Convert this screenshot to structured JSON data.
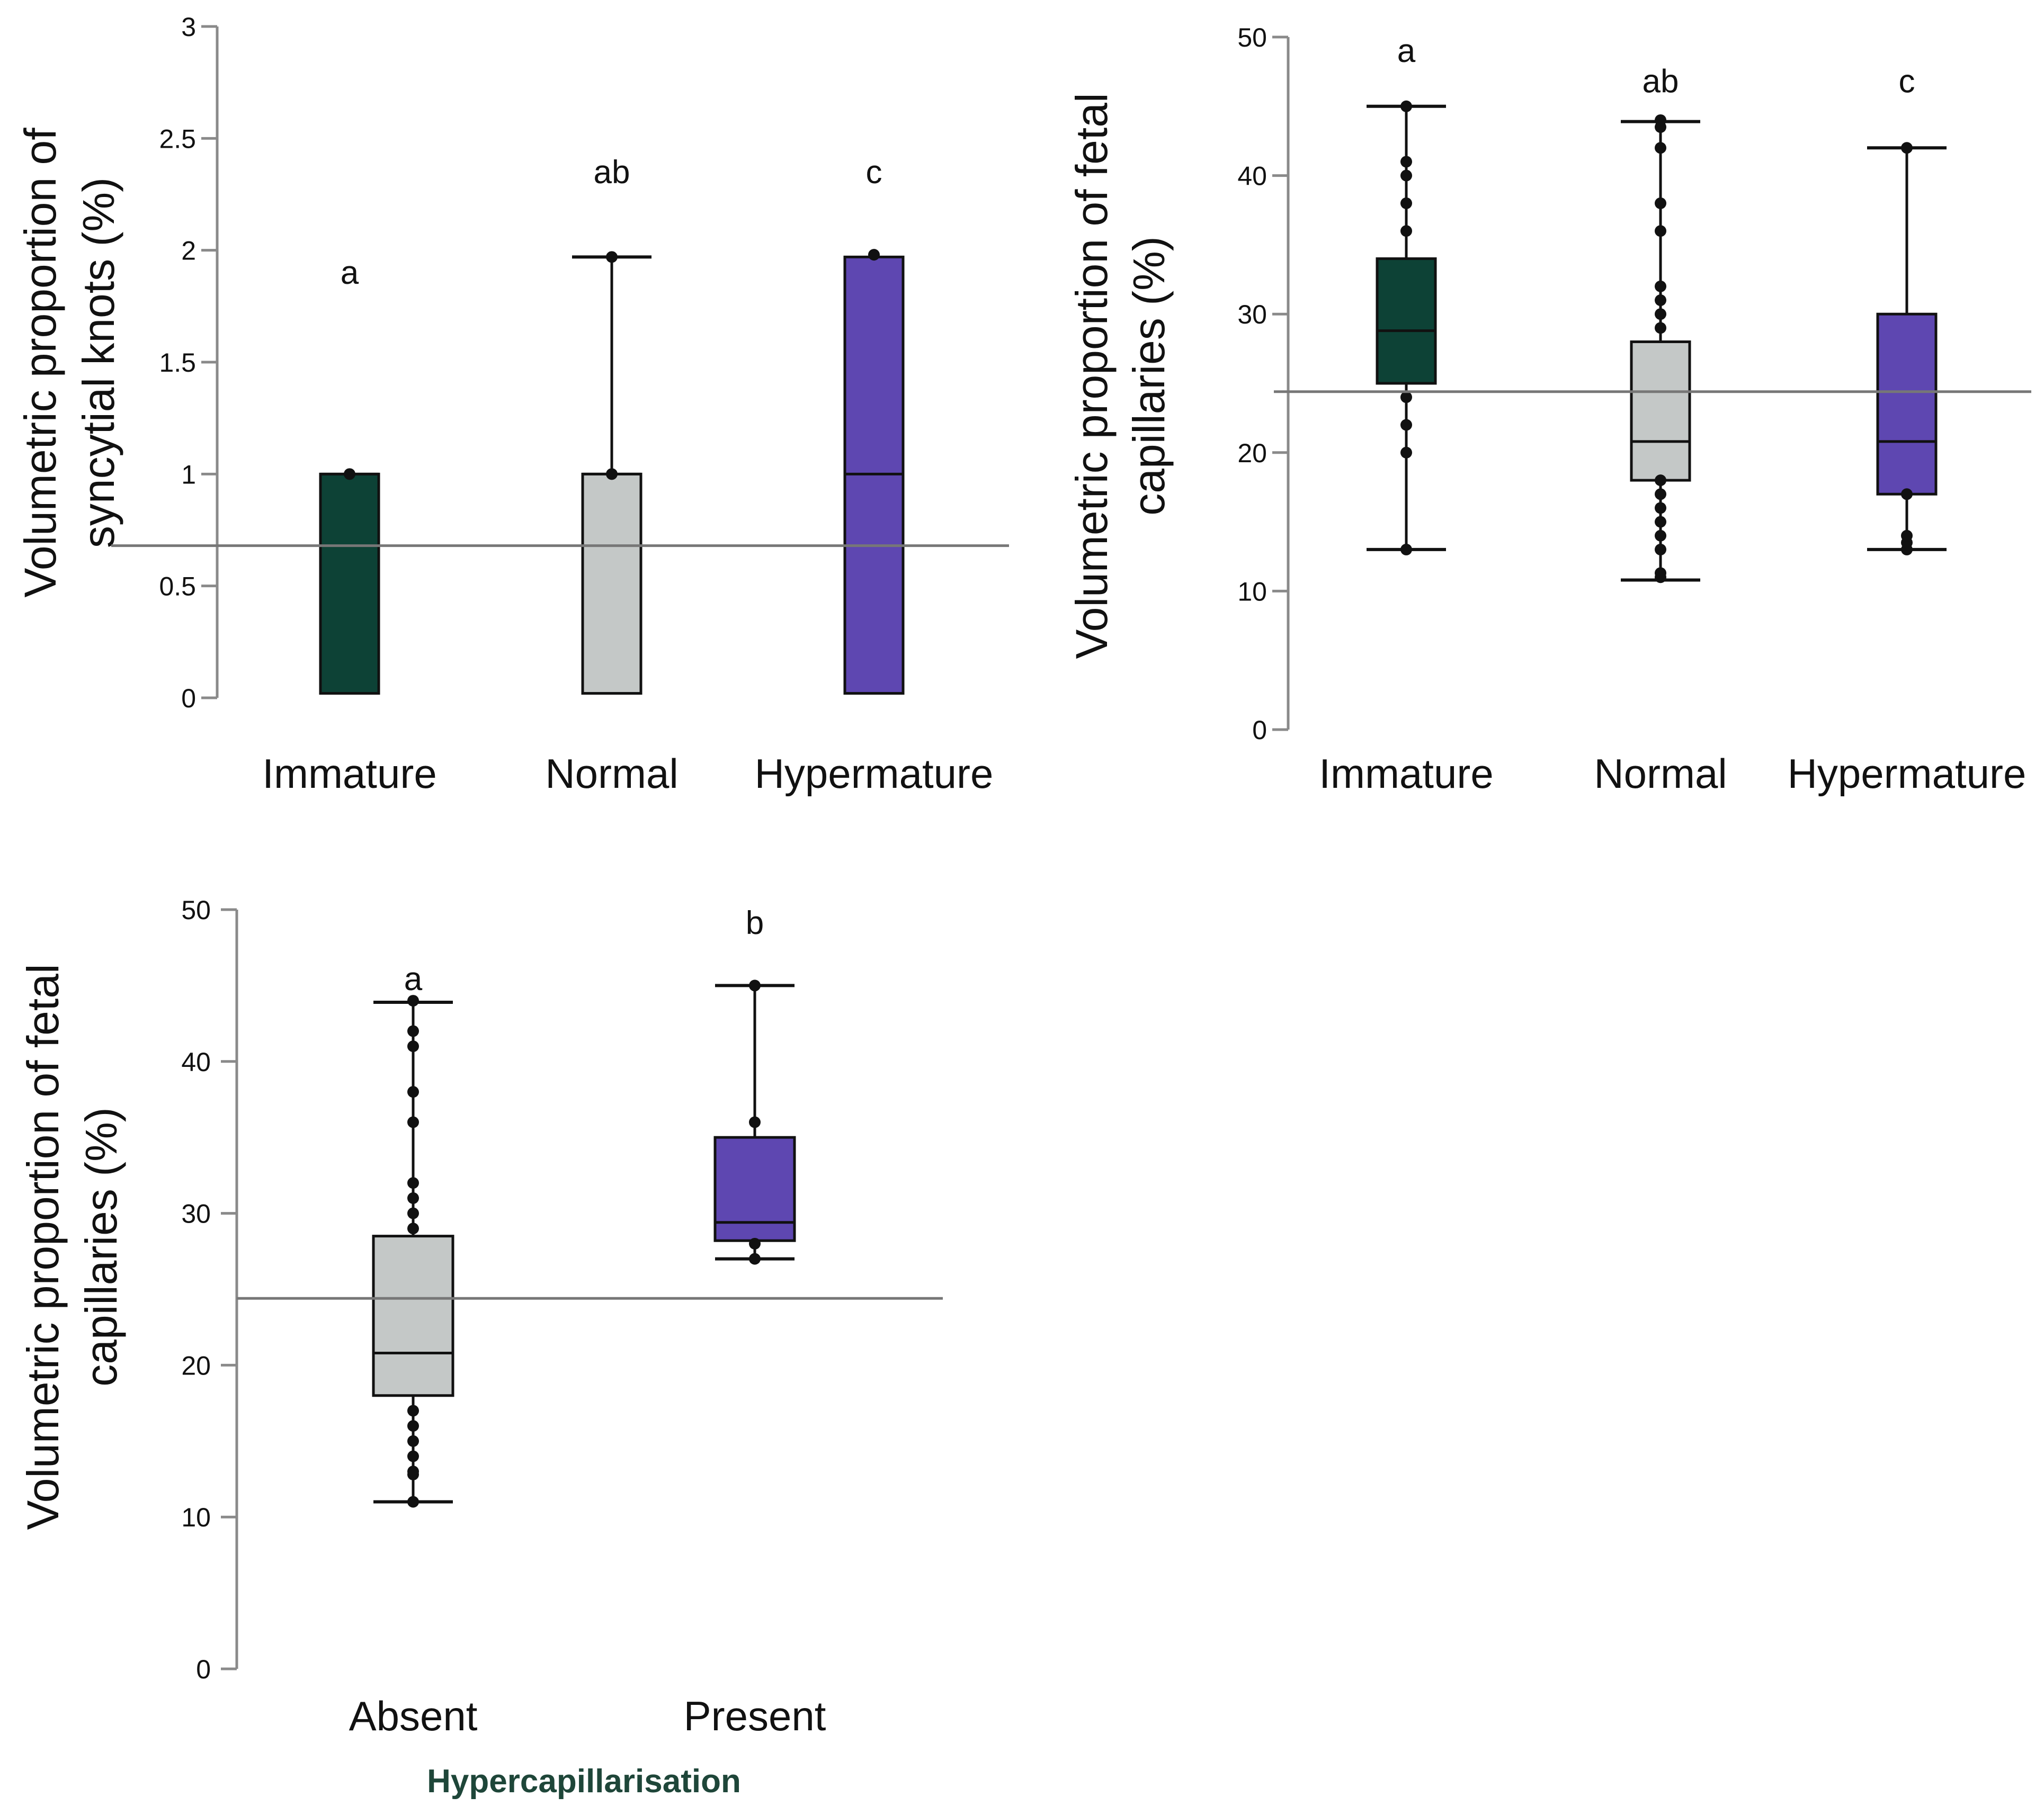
{
  "colors": {
    "immature": "#0d4236",
    "normal": "#c4c8c7",
    "hypermature": "#5e47b1",
    "axis": "#8a8a8a",
    "refline": "#777777",
    "ink": "#111111",
    "xtitle": "#1e4639"
  },
  "chart_data": [
    {
      "id": "knots",
      "type": "box",
      "title": "",
      "ylabel_lines": [
        "Volumetric  proportion of",
        "syncytial knots (%)"
      ],
      "xlabel": "",
      "ylim": [
        0,
        3
      ],
      "yticks": [
        0,
        0.5,
        1,
        1.5,
        2,
        2.5,
        3
      ],
      "ytick_labels": [
        "0",
        "0.5",
        "1",
        "1.5",
        "2",
        "2.5",
        "3"
      ],
      "reference_line": 0.68,
      "categories": [
        "Immature",
        "Normal",
        "Hypermature"
      ],
      "boxes": [
        {
          "name": "Immature",
          "color_key": "immature",
          "q1": 0.02,
          "median": 1,
          "q3": 1,
          "whisker_low": null,
          "whisker_high": null,
          "points": [
            1
          ],
          "sig": "a",
          "sig_y": 1.85
        },
        {
          "name": "Normal",
          "color_key": "normal",
          "q1": 0.02,
          "median": 1,
          "q3": 1,
          "whisker_low": null,
          "whisker_high": 1.97,
          "points": [
            1,
            1.97
          ],
          "sig": "ab",
          "sig_y": 2.3
        },
        {
          "name": "Hypermature",
          "color_key": "hypermature",
          "q1": 0.02,
          "median": 1,
          "q3": 1.97,
          "whisker_low": null,
          "whisker_high": null,
          "points": [
            1.98
          ],
          "sig": "c",
          "sig_y": 2.3
        }
      ]
    },
    {
      "id": "capillaries-maturity",
      "type": "box",
      "title": "",
      "ylabel_lines": [
        "Volumetric  proportion  of fetal",
        "capillaries (%)"
      ],
      "xlabel": "",
      "ylim": [
        0,
        50
      ],
      "yticks": [
        0,
        10,
        20,
        30,
        40,
        50
      ],
      "ytick_labels": [
        "0",
        "10",
        "20",
        "30",
        "40",
        "50"
      ],
      "reference_line": 24.4,
      "categories": [
        "Immature",
        "Normal",
        "Hypermature"
      ],
      "boxes": [
        {
          "name": "Immature",
          "color_key": "immature",
          "q1": 25,
          "median": 28.8,
          "q3": 34,
          "whisker_low": 13,
          "whisker_high": 45,
          "points": [
            13,
            20,
            22,
            24,
            36,
            38,
            40,
            41,
            45
          ],
          "sig": "a",
          "sig_y": 48.2
        },
        {
          "name": "Normal",
          "color_key": "normal",
          "q1": 18,
          "median": 20.8,
          "q3": 28,
          "whisker_low": 10.8,
          "whisker_high": 43.9,
          "points": [
            11,
            11.3,
            13,
            14,
            15,
            16,
            17,
            18,
            29,
            30,
            31,
            32,
            36,
            38,
            42,
            43.5,
            44
          ],
          "sig": "ab",
          "sig_y": 46
        },
        {
          "name": "Hypermature",
          "color_key": "hypermature",
          "q1": 17,
          "median": 20.8,
          "q3": 30,
          "whisker_low": 13,
          "whisker_high": 42,
          "points": [
            13,
            13.5,
            14,
            17,
            42
          ],
          "sig": "c",
          "sig_y": 46
        }
      ]
    },
    {
      "id": "capillaries-hypercapillarisation",
      "type": "box",
      "title": "",
      "ylabel_lines": [
        "Volumetric  proportion  of fetal",
        "capillaries (%)"
      ],
      "xlabel": "Hypercapillarisation",
      "ylim": [
        0,
        50
      ],
      "yticks": [
        0,
        10,
        20,
        30,
        40,
        50
      ],
      "ytick_labels": [
        "0",
        "10",
        "20",
        "30",
        "40",
        "50"
      ],
      "reference_line": 24.4,
      "categories": [
        "Absent",
        "Present"
      ],
      "boxes": [
        {
          "name": "Absent",
          "color_key": "normal",
          "q1": 18,
          "median": 20.8,
          "q3": 28.5,
          "whisker_low": 11,
          "whisker_high": 43.9,
          "points": [
            11,
            12.8,
            13,
            14,
            15,
            16,
            17,
            29,
            30,
            31,
            32,
            36,
            38,
            41,
            42,
            44
          ],
          "sig": "a",
          "sig_y": 44.7
        },
        {
          "name": "Present",
          "color_key": "hypermature",
          "q1": 28.2,
          "median": 29.4,
          "q3": 35,
          "whisker_low": 27,
          "whisker_high": 45,
          "points": [
            27,
            28,
            36,
            45
          ],
          "sig": "b",
          "sig_y": 48.4
        }
      ]
    }
  ]
}
